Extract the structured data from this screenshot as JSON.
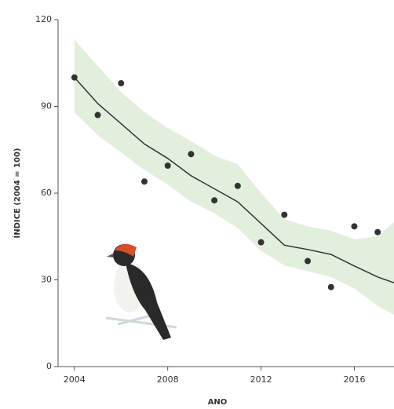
{
  "chart_data": {
    "type": "scatter",
    "x_label": "ANO",
    "y_label": "ÍNDICE (2004 = 100)",
    "xlim": [
      2003.3,
      2017.7
    ],
    "ylim": [
      0,
      120
    ],
    "xticks": [
      2004,
      2008,
      2012,
      2016
    ],
    "yticks": [
      0,
      30,
      60,
      90,
      120
    ],
    "points": {
      "color": "#333333",
      "x": [
        2004,
        2005,
        2006,
        2007,
        2008,
        2009,
        2010,
        2011,
        2012,
        2013,
        2014,
        2015,
        2016,
        2017
      ],
      "values": [
        100,
        87,
        98,
        64,
        69.5,
        73.5,
        57.5,
        62.5,
        43,
        52.5,
        36.5,
        27.5,
        48.5,
        46.5
      ]
    },
    "trend": {
      "color": "#333333",
      "band_color": "#e2efdc",
      "x": [
        2004,
        2005,
        2006,
        2007,
        2008,
        2009,
        2010,
        2011,
        2012,
        2013,
        2014,
        2015,
        2016,
        2017,
        2017.7
      ],
      "values": [
        100,
        91,
        84,
        77,
        72,
        66,
        61.5,
        57,
        49.5,
        42,
        40.5,
        38.8,
        34.8,
        31,
        29
      ],
      "upper": [
        113,
        104,
        95,
        88,
        82.5,
        78,
        73,
        70,
        60,
        51,
        48.5,
        47,
        44,
        45,
        50
      ],
      "lower": [
        88,
        80,
        74,
        68,
        63,
        57,
        53,
        48,
        40,
        35,
        33,
        31,
        27,
        21,
        18
      ]
    }
  }
}
